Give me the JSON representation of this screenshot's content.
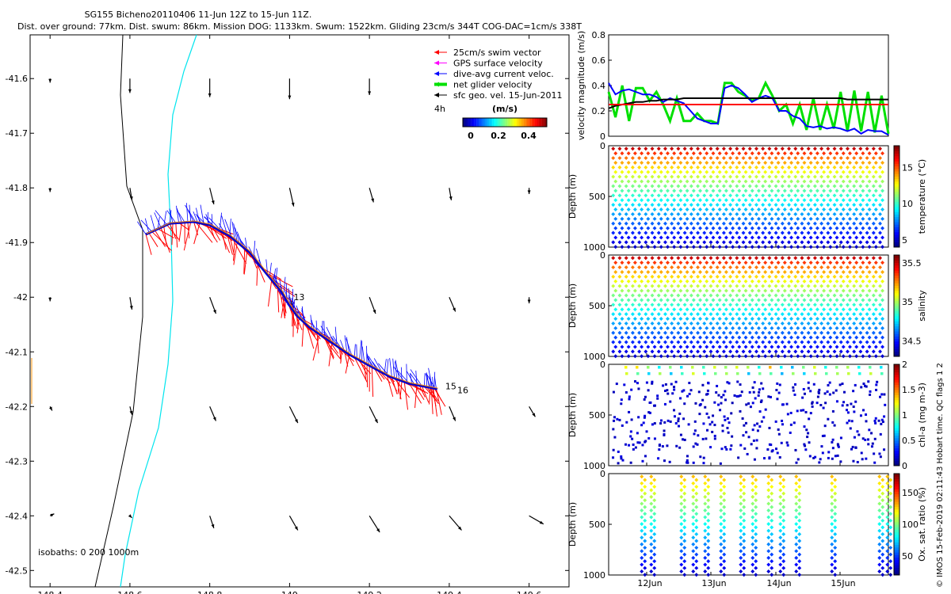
{
  "header": {
    "title": "SG155 Bicheno20110406 11-Jun 12Z to 15-Jun 11Z.",
    "subtitle": "Dist. over ground: 77km. Dist. swum: 86km. Mission DOG: 1133km. Swum: 1522km. Gliding 23cm/s 344T COG-DAC=1cm/s 338T"
  },
  "colors": {
    "swim_vector": "#ff0000",
    "gps_velocity": "#ff00ff",
    "dive_avg": "#0000ff",
    "net_velocity": "#00e000",
    "geo_velocity": "#000000",
    "isobath_0": "#000000",
    "isobath_200": "#00e5ee"
  },
  "chart_data": [
    {
      "id": "map",
      "type": "scatter",
      "xlim": [
        148.35,
        149.7
      ],
      "ylim": [
        -42.53,
        -41.52
      ],
      "x_ticks": [
        148.4,
        148.6,
        148.8,
        149,
        149.2,
        149.4,
        149.6
      ],
      "x_tick_labels": [
        "148.4",
        "148.6",
        "148.8",
        "149",
        "149.2",
        "149.4",
        "149.6"
      ],
      "y_ticks": [
        -41.6,
        -41.7,
        -41.8,
        -41.9,
        -42,
        -42.1,
        -42.2,
        -42.3,
        -42.4,
        -42.5
      ],
      "y_tick_labels": [
        "-41.6",
        "-41.7",
        "-41.8",
        "-41.9",
        "-42",
        "-42.1",
        "-42.2",
        "-42.3",
        "-42.4",
        "-42.5"
      ],
      "legend": {
        "entries": [
          "25cm/s swim vector",
          "GPS surface velocity",
          "dive-avg current veloc.",
          "net glider velocity",
          "sfc geo. vel. 15-Jun-2011"
        ],
        "extra_label": "4h",
        "colorbar_title": "(m/s)",
        "colorbar_ticks": [
          "0",
          "0.2",
          "0.4"
        ]
      },
      "isobaths_label": "isobaths: 0   200  1000m",
      "track": [
        [
          148.64,
          -41.885
        ],
        [
          148.7,
          -41.865
        ],
        [
          148.76,
          -41.862
        ],
        [
          148.8,
          -41.868
        ],
        [
          148.85,
          -41.888
        ],
        [
          148.9,
          -41.918
        ],
        [
          148.94,
          -41.955
        ],
        [
          148.98,
          -41.99
        ],
        [
          149.0,
          -42.015
        ],
        [
          149.02,
          -42.035
        ],
        [
          149.05,
          -42.055
        ],
        [
          149.1,
          -42.08
        ],
        [
          149.15,
          -42.105
        ],
        [
          149.2,
          -42.125
        ],
        [
          149.25,
          -42.145
        ],
        [
          149.3,
          -42.158
        ],
        [
          149.35,
          -42.165
        ],
        [
          149.37,
          -42.168
        ]
      ],
      "day_labels": [
        {
          "text": "13",
          "lon": 149.01,
          "lat": -42.0
        },
        {
          "text": "15",
          "lon": 149.39,
          "lat": -42.163
        },
        {
          "text": "16",
          "lon": 149.42,
          "lat": -42.17
        }
      ],
      "geo_vectors": [
        {
          "lon": 148.4,
          "lat": -41.6,
          "u": 0.0,
          "v": -0.2
        },
        {
          "lon": 148.6,
          "lat": -41.6,
          "u": 0.0,
          "v": -0.7
        },
        {
          "lon": 148.8,
          "lat": -41.6,
          "u": 0.0,
          "v": -0.9
        },
        {
          "lon": 149.0,
          "lat": -41.6,
          "u": 0.0,
          "v": -1.0
        },
        {
          "lon": 149.2,
          "lat": -41.6,
          "u": 0.0,
          "v": -0.8
        },
        {
          "lon": 148.4,
          "lat": -41.8,
          "u": 0.0,
          "v": -0.2
        },
        {
          "lon": 148.6,
          "lat": -41.8,
          "u": 0.1,
          "v": -0.6
        },
        {
          "lon": 148.8,
          "lat": -41.8,
          "u": 0.2,
          "v": -0.8
        },
        {
          "lon": 149.0,
          "lat": -41.8,
          "u": 0.2,
          "v": -0.9
        },
        {
          "lon": 149.2,
          "lat": -41.8,
          "u": 0.2,
          "v": -0.7
        },
        {
          "lon": 149.4,
          "lat": -41.8,
          "u": 0.1,
          "v": -0.6
        },
        {
          "lon": 149.6,
          "lat": -41.8,
          "u": 0.0,
          "v": -0.3
        },
        {
          "lon": 148.4,
          "lat": -42.0,
          "u": 0.0,
          "v": -0.2
        },
        {
          "lon": 148.6,
          "lat": -42.0,
          "u": 0.1,
          "v": -0.6
        },
        {
          "lon": 148.8,
          "lat": -42.0,
          "u": 0.3,
          "v": -0.8
        },
        {
          "lon": 149.0,
          "lat": -42.0,
          "u": 0.3,
          "v": -0.9
        },
        {
          "lon": 149.2,
          "lat": -42.0,
          "u": 0.3,
          "v": -0.8
        },
        {
          "lon": 149.4,
          "lat": -42.0,
          "u": 0.3,
          "v": -0.7
        },
        {
          "lon": 149.6,
          "lat": -42.0,
          "u": 0.0,
          "v": -0.3
        },
        {
          "lon": 148.4,
          "lat": -42.2,
          "u": 0.1,
          "v": -0.2
        },
        {
          "lon": 148.6,
          "lat": -42.2,
          "u": 0.1,
          "v": -0.4
        },
        {
          "lon": 148.8,
          "lat": -42.2,
          "u": 0.3,
          "v": -0.7
        },
        {
          "lon": 149.0,
          "lat": -42.2,
          "u": 0.4,
          "v": -0.8
        },
        {
          "lon": 149.2,
          "lat": -42.2,
          "u": 0.4,
          "v": -0.8
        },
        {
          "lon": 149.4,
          "lat": -42.2,
          "u": 0.3,
          "v": -0.7
        },
        {
          "lon": 149.6,
          "lat": -42.2,
          "u": 0.3,
          "v": -0.5
        },
        {
          "lon": 148.4,
          "lat": -42.4,
          "u": 0.2,
          "v": 0.1
        },
        {
          "lon": 148.6,
          "lat": -42.4,
          "u": 0.1,
          "v": -0.1
        },
        {
          "lon": 148.8,
          "lat": -42.4,
          "u": 0.2,
          "v": -0.6
        },
        {
          "lon": 149.0,
          "lat": -42.4,
          "u": 0.4,
          "v": -0.7
        },
        {
          "lon": 149.2,
          "lat": -42.4,
          "u": 0.5,
          "v": -0.8
        },
        {
          "lon": 149.4,
          "lat": -42.4,
          "u": 0.6,
          "v": -0.7
        },
        {
          "lon": 149.6,
          "lat": -42.4,
          "u": 0.7,
          "v": -0.4
        }
      ]
    },
    {
      "id": "velocity",
      "type": "line",
      "ylabel": "velocity magnitude (m/s)",
      "xlim": [
        0,
        1
      ],
      "ylim": [
        0,
        0.8
      ],
      "y_ticks": [
        "0",
        "0.2",
        "0.4",
        "0.6",
        "0.8"
      ],
      "series": [
        {
          "color": "#00e000",
          "values": [
            0.35,
            0.15,
            0.4,
            0.12,
            0.38,
            0.38,
            0.28,
            0.35,
            0.25,
            0.12,
            0.3,
            0.12,
            0.12,
            0.18,
            0.12,
            0.12,
            0.1,
            0.42,
            0.42,
            0.35,
            0.32,
            0.28,
            0.3,
            0.42,
            0.32,
            0.2,
            0.25,
            0.1,
            0.25,
            0.05,
            0.3,
            0.05,
            0.25,
            0.06,
            0.35,
            0.04,
            0.36,
            0.04,
            0.35,
            0.03,
            0.32,
            0.02
          ]
        },
        {
          "color": "#0000ff",
          "values": [
            0.42,
            0.33,
            0.36,
            0.37,
            0.35,
            0.33,
            0.33,
            0.31,
            0.27,
            0.3,
            0.28,
            0.26,
            0.2,
            0.14,
            0.12,
            0.1,
            0.1,
            0.38,
            0.4,
            0.38,
            0.33,
            0.27,
            0.3,
            0.32,
            0.3,
            0.2,
            0.2,
            0.16,
            0.14,
            0.08,
            0.07,
            0.08,
            0.06,
            0.07,
            0.06,
            0.04,
            0.06,
            0.02,
            0.05,
            0.04,
            0.04,
            0.01
          ]
        },
        {
          "color": "#000000",
          "values": [
            0.22,
            0.24,
            0.25,
            0.26,
            0.27,
            0.27,
            0.28,
            0.28,
            0.29,
            0.29,
            0.29,
            0.3,
            0.3,
            0.3,
            0.3,
            0.3,
            0.3,
            0.3,
            0.3,
            0.3,
            0.3,
            0.3,
            0.3,
            0.3,
            0.3,
            0.3,
            0.3,
            0.3,
            0.3,
            0.3,
            0.3,
            0.3,
            0.3,
            0.3,
            0.3,
            0.29,
            0.29,
            0.29,
            0.29,
            0.29,
            0.29,
            0.29
          ]
        },
        {
          "color": "#ff0000",
          "values": [
            0.25,
            0.25,
            0.25,
            0.25,
            0.25,
            0.25,
            0.25,
            0.25,
            0.25,
            0.25,
            0.25,
            0.25,
            0.25,
            0.25,
            0.25,
            0.25,
            0.25,
            0.25,
            0.25,
            0.25,
            0.25,
            0.25,
            0.25,
            0.25,
            0.25,
            0.25,
            0.25,
            0.25,
            0.25,
            0.25,
            0.25,
            0.25,
            0.25,
            0.25,
            0.25,
            0.25,
            0.25,
            0.25,
            0.25,
            0.25,
            0.25,
            0.25
          ]
        }
      ]
    },
    {
      "id": "temperature",
      "type": "heatmap",
      "ylabel": "Depth (m)",
      "ylim": [
        1000,
        0
      ],
      "y_ticks": [
        "0",
        "500",
        "1000"
      ],
      "colorbar_label": "temperature (°C)",
      "colorbar_range": [
        4,
        18
      ],
      "colorbar_ticks": [
        "5",
        "10",
        "15"
      ],
      "surface_value": 17,
      "bottom_value": 5
    },
    {
      "id": "salinity",
      "type": "heatmap",
      "ylabel": "Depth (m)",
      "ylim": [
        1000,
        0
      ],
      "y_ticks": [
        "0",
        "500",
        "1000"
      ],
      "colorbar_label": "salinity",
      "colorbar_range": [
        34.3,
        35.6
      ],
      "colorbar_ticks": [
        "34.5",
        "35",
        "35.5"
      ],
      "surface_value": 35.5,
      "bottom_value": 34.4
    },
    {
      "id": "chla",
      "type": "scatter",
      "ylabel": "Depth (m)",
      "ylim": [
        1000,
        0
      ],
      "y_ticks": [
        "0",
        "500",
        "1000"
      ],
      "colorbar_label": "chl-a (mg m-3)",
      "colorbar_range": [
        0,
        2
      ],
      "colorbar_ticks": [
        "0",
        "0.5",
        "1",
        "1.5",
        "2"
      ]
    },
    {
      "id": "oxygen",
      "type": "scatter",
      "ylabel": "Depth (m)",
      "ylim": [
        1000,
        0
      ],
      "y_ticks": [
        "0",
        "500",
        "1000"
      ],
      "colorbar_label": "Ox. sat. ratio (%)",
      "colorbar_range": [
        20,
        180
      ],
      "colorbar_ticks": [
        "50",
        "100",
        "150"
      ],
      "x_ticks": [
        "12Jun",
        "13Jun",
        "14Jun",
        "15Jun"
      ]
    }
  ],
  "footer": {
    "credit": "© IMOS 15-Feb-2019 02:11:43 Hobart time. QC flags 1  2"
  }
}
